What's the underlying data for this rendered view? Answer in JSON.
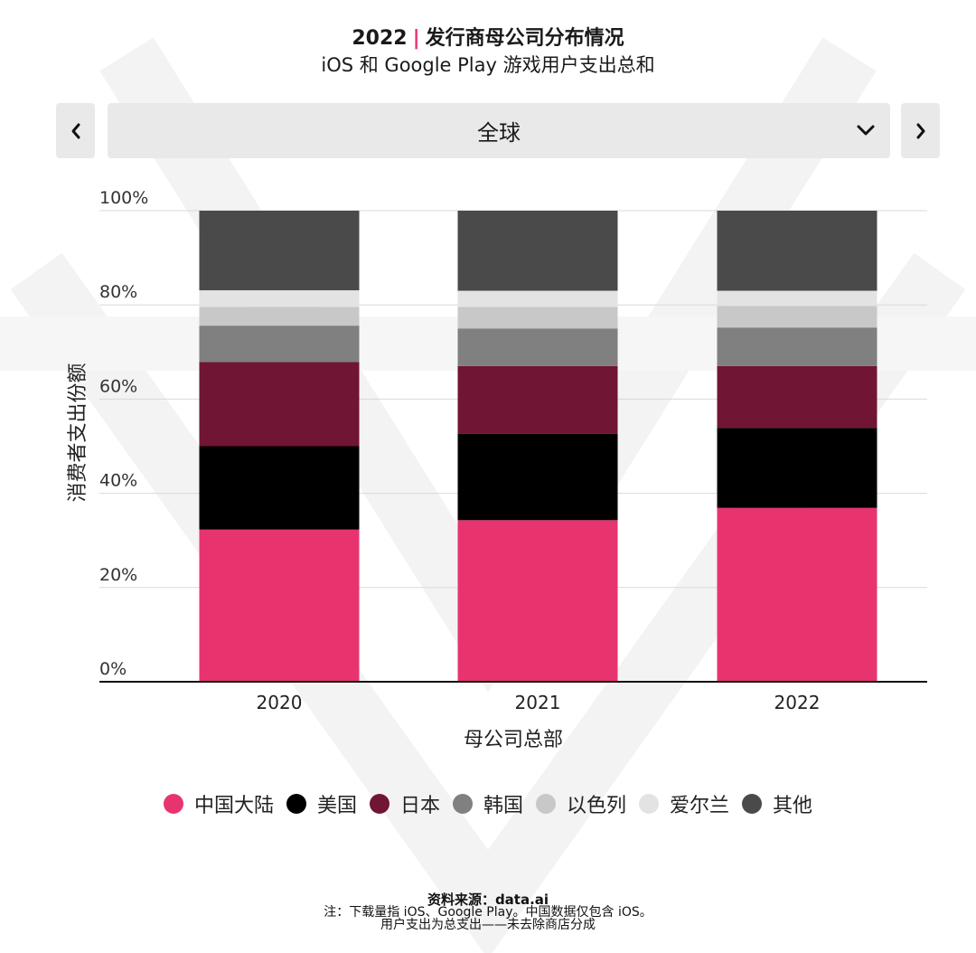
{
  "header": {
    "year": "2022",
    "separator": "|",
    "title": "发行商母公司分布情况",
    "subtitle": "iOS 和 Google Play 游戏用户支出总和"
  },
  "nav": {
    "prev_icon": "chevron-left-icon",
    "next_icon": "chevron-right-icon",
    "dropdown_value": "全球",
    "dropdown_icon": "chevron-down-icon"
  },
  "colors": {
    "accent": "#e8346e",
    "中国大陆": "#e8346e",
    "美国": "#000000",
    "日本": "#701533",
    "韩国": "#808080",
    "以色列": "#c8c8c8",
    "爱尔兰": "#e3e3e3",
    "其他": "#4a4a4a"
  },
  "chart_data": {
    "type": "bar",
    "stacked": true,
    "categories": [
      "2020",
      "2021",
      "2022"
    ],
    "xlabel": "母公司总部",
    "ylabel": "消费者支出份额",
    "ylim": [
      0,
      100
    ],
    "yticks": [
      "0%",
      "20%",
      "40%",
      "60%",
      "80%",
      "100%"
    ],
    "grid": true,
    "legend_position": "bottom",
    "series": [
      {
        "name": "中国大陆",
        "color": "#e8346e",
        "values": [
          32.3,
          34.3,
          36.9
        ]
      },
      {
        "name": "美国",
        "color": "#000000",
        "values": [
          17.7,
          18.3,
          17.0
        ]
      },
      {
        "name": "日本",
        "color": "#701533",
        "values": [
          17.9,
          14.4,
          13.1
        ]
      },
      {
        "name": "韩国",
        "color": "#808080",
        "values": [
          7.7,
          8.0,
          8.2
        ]
      },
      {
        "name": "以色列",
        "color": "#c8c8c8",
        "values": [
          4.0,
          4.6,
          4.6
        ]
      },
      {
        "name": "爱尔兰",
        "color": "#e3e3e3",
        "values": [
          3.5,
          3.4,
          3.2
        ]
      },
      {
        "name": "其他",
        "color": "#4a4a4a",
        "values": [
          16.9,
          17.0,
          17.0
        ]
      }
    ]
  },
  "footer": {
    "source": "资料来源：data.ai",
    "note_line1": "注：下载量指 iOS、Google Play。中国数据仅包含 iOS。",
    "note_line2": "用户支出为总支出——未去除商店分成"
  }
}
